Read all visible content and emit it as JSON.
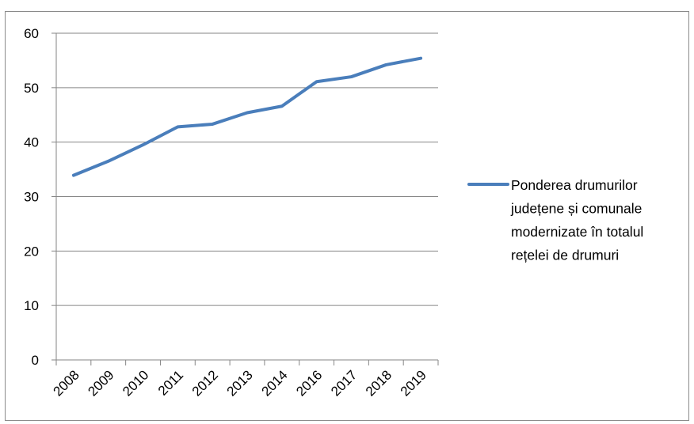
{
  "chart_data": {
    "type": "line",
    "title": "",
    "xlabel": "",
    "ylabel": "",
    "categories": [
      "2008",
      "2009",
      "2010",
      "2011",
      "2012",
      "2013",
      "2014",
      "2016",
      "2017",
      "2018",
      "2019"
    ],
    "series": [
      {
        "name": "Ponderea drumurilor județene și comunale modernizate în totalul rețelei de drumuri",
        "legend_lines": [
          "Ponderea drumurilor",
          "județene și comunale",
          "modernizate în totalul",
          "rețelei de drumuri"
        ],
        "color": "#4a7ebb",
        "values": [
          33.9,
          36.5,
          39.5,
          42.8,
          43.3,
          45.4,
          46.6,
          51.1,
          52.0,
          54.2,
          55.4
        ]
      }
    ],
    "ylim": [
      0,
      60
    ],
    "yticks": [
      0,
      10,
      20,
      30,
      40,
      50,
      60
    ],
    "grid": true,
    "legend": "right"
  }
}
